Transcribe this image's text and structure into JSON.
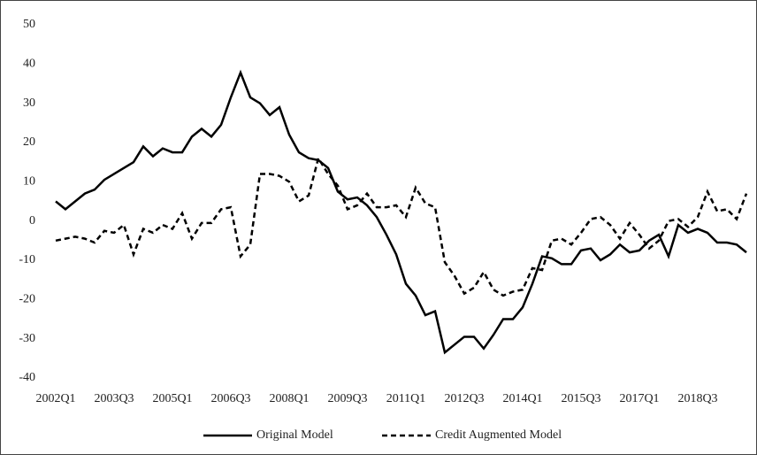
{
  "chart_data": {
    "type": "line",
    "categories": [
      "2002Q1",
      null,
      null,
      null,
      null,
      null,
      "2003Q3",
      null,
      null,
      null,
      null,
      null,
      "2005Q1",
      null,
      null,
      null,
      null,
      null,
      "2006Q3",
      null,
      null,
      null,
      null,
      null,
      "2008Q1",
      null,
      null,
      null,
      null,
      null,
      "2009Q3",
      null,
      null,
      null,
      null,
      null,
      "2011Q1",
      null,
      null,
      null,
      null,
      null,
      "2012Q3",
      null,
      null,
      null,
      null,
      null,
      "2014Q1",
      null,
      null,
      null,
      null,
      null,
      "2015Q3",
      null,
      null,
      null,
      null,
      null,
      "2017Q1",
      null,
      null,
      null,
      null,
      null,
      "2018Q3",
      null,
      null,
      null,
      null,
      null
    ],
    "series": [
      {
        "name": "Original Model",
        "color": "#000000",
        "line_style": "solid",
        "values": [
          5,
          3,
          5,
          7,
          8,
          10.5,
          12,
          13.5,
          15,
          19,
          16.5,
          18.5,
          17.5,
          17.5,
          21.5,
          23.5,
          21.5,
          24.5,
          31.5,
          37.8,
          31.5,
          30,
          27,
          29,
          22,
          17.5,
          16,
          15.5,
          13.5,
          7.5,
          5.5,
          6,
          4,
          1,
          -3.5,
          -8.5,
          -16,
          -19,
          -24,
          -23,
          -33.5,
          -31.5,
          -29.5,
          -29.5,
          -32.5,
          -29,
          -25,
          -25,
          -22,
          -16,
          -9,
          -9.5,
          -11,
          -11,
          -7.5,
          -7,
          -10,
          -8.5,
          -6,
          -8,
          -7.5,
          -5,
          -3.5,
          -9,
          -1,
          -3,
          -2,
          -3,
          -5.5,
          -5.5,
          -6,
          -8
        ]
      },
      {
        "name": "Credit Augmented Model",
        "color": "#000000",
        "line_style": "dashed",
        "values": [
          -5,
          -4.5,
          -4,
          -4.5,
          -5.5,
          -2.5,
          -3,
          -1,
          -8.5,
          -2,
          -3,
          -1,
          -2,
          2,
          -4.5,
          -0.5,
          -0.5,
          3,
          3.5,
          -9,
          -6,
          12,
          12,
          11.5,
          10,
          5,
          6.5,
          16,
          12,
          9,
          3,
          4,
          7,
          3.5,
          3.5,
          4,
          1,
          8.5,
          4.5,
          3.5,
          -10.5,
          -14,
          -18.5,
          -17,
          -13,
          -17.5,
          -19,
          -18,
          -17.5,
          -12,
          -12.5,
          -5,
          -4.5,
          -6,
          -3,
          0.5,
          1,
          -1,
          -4.5,
          -0.5,
          -3.5,
          -7,
          -5,
          0,
          0.5,
          -1.5,
          1,
          7.5,
          2.5,
          3,
          0.5,
          7
        ]
      }
    ],
    "ylim": [
      -40,
      50
    ],
    "yticks": [
      -40,
      -30,
      -20,
      -10,
      0,
      10,
      20,
      30,
      40,
      50
    ],
    "grid": false,
    "legend": "bottom"
  }
}
